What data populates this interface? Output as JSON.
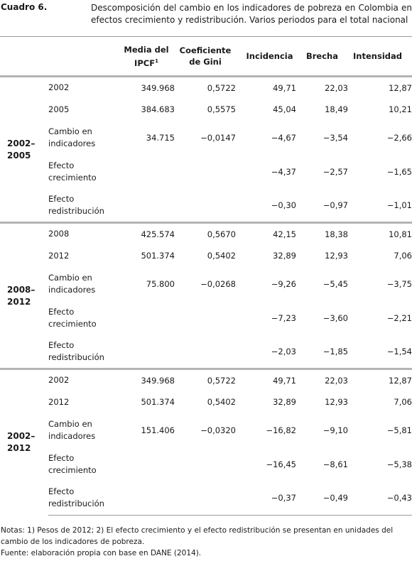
{
  "caption": {
    "label": "Cuadro 6.",
    "title": "Descomposición del cambio en los indicadores de pobreza en Colombia en efectos crecimiento y redistribución. Varios periodos para el total nacional"
  },
  "headers": {
    "media_line1": "Media del",
    "media_line2": "IPCF",
    "media_sup": "1",
    "gini_line1": "Coeficiente",
    "gini_line2": "de Gini",
    "incidencia": "Incidencia",
    "brecha": "Brecha",
    "intensidad": "Intensidad"
  },
  "blocks": [
    {
      "period_line1": "2002–",
      "period_line2": "2005",
      "rows": [
        {
          "l1": "2002",
          "l2": "",
          "media": "349.968",
          "gini": "0,5722",
          "incidencia": "49,71",
          "brecha": "22,03",
          "intensidad": "12,87"
        },
        {
          "l1": "2005",
          "l2": "",
          "media": "384.683",
          "gini": "0,5575",
          "incidencia": "45,04",
          "brecha": "18,49",
          "intensidad": "10,21"
        },
        {
          "l1": "Cambio en",
          "l2": "indicadores",
          "media": "34.715",
          "gini": "−0,0147",
          "incidencia": "−4,67",
          "brecha": "−3,54",
          "intensidad": "−2,66"
        },
        {
          "l1": "Efecto",
          "l2": "crecimiento",
          "media": "",
          "gini": "",
          "incidencia": "−4,37",
          "brecha": "−2,57",
          "intensidad": "−1,65"
        },
        {
          "l1": "Efecto",
          "l2": "redistribución",
          "media": "",
          "gini": "",
          "incidencia": "−0,30",
          "brecha": "−0,97",
          "intensidad": "−1,01"
        }
      ]
    },
    {
      "period_line1": "2008–",
      "period_line2": "2012",
      "rows": [
        {
          "l1": "2008",
          "l2": "",
          "media": "425.574",
          "gini": "0,5670",
          "incidencia": "42,15",
          "brecha": "18,38",
          "intensidad": "10,81"
        },
        {
          "l1": "2012",
          "l2": "",
          "media": "501.374",
          "gini": "0,5402",
          "incidencia": "32,89",
          "brecha": "12,93",
          "intensidad": "7,06"
        },
        {
          "l1": "Cambio en",
          "l2": "indicadores",
          "media": "75.800",
          "gini": "−0,0268",
          "incidencia": "−9,26",
          "brecha": "−5,45",
          "intensidad": "−3,75"
        },
        {
          "l1": "Efecto",
          "l2": "crecimiento",
          "media": "",
          "gini": "",
          "incidencia": "−7,23",
          "brecha": "−3,60",
          "intensidad": "−2,21"
        },
        {
          "l1": "Efecto",
          "l2": "redistribución",
          "media": "",
          "gini": "",
          "incidencia": "−2,03",
          "brecha": "−1,85",
          "intensidad": "−1,54"
        }
      ]
    },
    {
      "period_line1": "2002–",
      "period_line2": "2012",
      "rows": [
        {
          "l1": "2002",
          "l2": "",
          "media": "349.968",
          "gini": "0,5722",
          "incidencia": "49,71",
          "brecha": "22,03",
          "intensidad": "12,87"
        },
        {
          "l1": "2012",
          "l2": "",
          "media": "501.374",
          "gini": "0,5402",
          "incidencia": "32,89",
          "brecha": "12,93",
          "intensidad": "7,06"
        },
        {
          "l1": "Cambio en",
          "l2": "indicadores",
          "media": "151.406",
          "gini": "−0,0320",
          "incidencia": "−16,82",
          "brecha": "−9,10",
          "intensidad": "−5,81"
        },
        {
          "l1": "Efecto",
          "l2": "crecimiento",
          "media": "",
          "gini": "",
          "incidencia": "−16,45",
          "brecha": "−8,61",
          "intensidad": "−5,38"
        },
        {
          "l1": "Efecto",
          "l2": "redistribución",
          "media": "",
          "gini": "",
          "incidencia": "−0,37",
          "brecha": "−0,49",
          "intensidad": "−0,43"
        }
      ]
    }
  ],
  "notes": {
    "line1": "Notas: 1) Pesos de 2012; 2) El efecto crecimiento y el efecto redistribución se presentan en unidades del cambio de los indicadores de pobreza.",
    "line2": "Fuente: elaboración propia con base en DANE (2014)."
  }
}
